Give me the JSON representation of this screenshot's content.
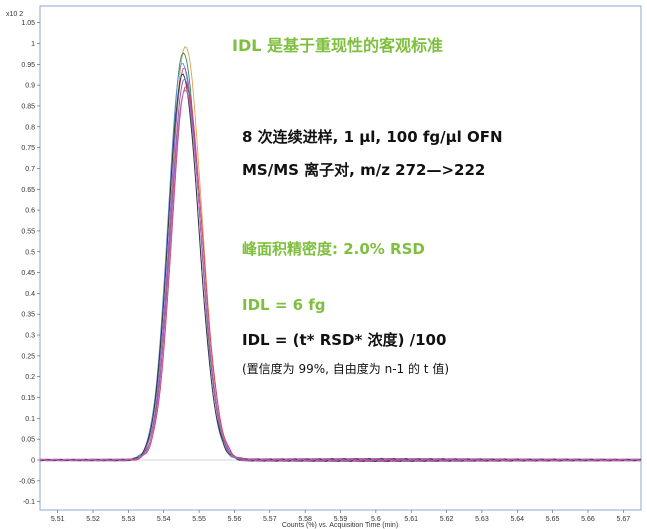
{
  "chart_data": {
    "type": "line",
    "x_multiplier_label": "x10 2",
    "xlabel": "Counts (%) vs. Acquisition Time (min)",
    "xlim": [
      5.505,
      5.675
    ],
    "ylim": [
      -0.12,
      1.09
    ],
    "x_ticks": [
      "5.51",
      "5.52",
      "5.53",
      "5.54",
      "5.55",
      "5.56",
      "5.57",
      "5.58",
      "5.59",
      "5.6",
      "5.61",
      "5.62",
      "5.63",
      "5.64",
      "5.65",
      "5.66",
      "5.67"
    ],
    "y_ticks": [
      "1.05",
      "1",
      "0.95",
      "0.9",
      "0.85",
      "0.8",
      "0.75",
      "0.7",
      "0.65",
      "0.6",
      "0.55",
      "0.5",
      "0.45",
      "0.4",
      "0.35",
      "0.3",
      "0.25",
      "0.2",
      "0.15",
      "0.1",
      "0.05",
      "0",
      "-0.05",
      "-0.1"
    ],
    "peak_center": 5.5455,
    "series": [
      {
        "color": "#e0a050",
        "peak": 0.995,
        "shift": 0.0006
      },
      {
        "color": "#2e8b57",
        "peak": 0.98,
        "shift": 0.0
      },
      {
        "color": "#5b8fd6",
        "peak": 0.955,
        "shift": -0.0003
      },
      {
        "color": "#9b5fc0",
        "peak": 0.94,
        "shift": 0.0002
      },
      {
        "color": "#333333",
        "peak": 0.925,
        "shift": -0.0002
      },
      {
        "color": "#7a5ab0",
        "peak": 0.915,
        "shift": 0.0004
      },
      {
        "color": "#d04060",
        "peak": 0.9,
        "shift": 0.0008
      },
      {
        "color": "#c060c0",
        "peak": 0.89,
        "shift": 0.0005
      }
    ]
  },
  "annotations": {
    "title": "IDL 是基于重现性的客观标准",
    "line1": "8 次连续进样, 1 µl, 100 fg/µl OFN",
    "line2": "MS/MS 离子对, m/z 272—>222",
    "line3": "峰面积精密度: 2.0% RSD",
    "line4": "IDL = 6 fg",
    "line5": "IDL = (t* RSD* 浓度) /100",
    "line6": "(置信度为 99%, 自由度为 n-1 的 t 值)"
  },
  "colors": {
    "accent_green": "#7fbf3f",
    "plot_border": "#8aa8d8"
  }
}
